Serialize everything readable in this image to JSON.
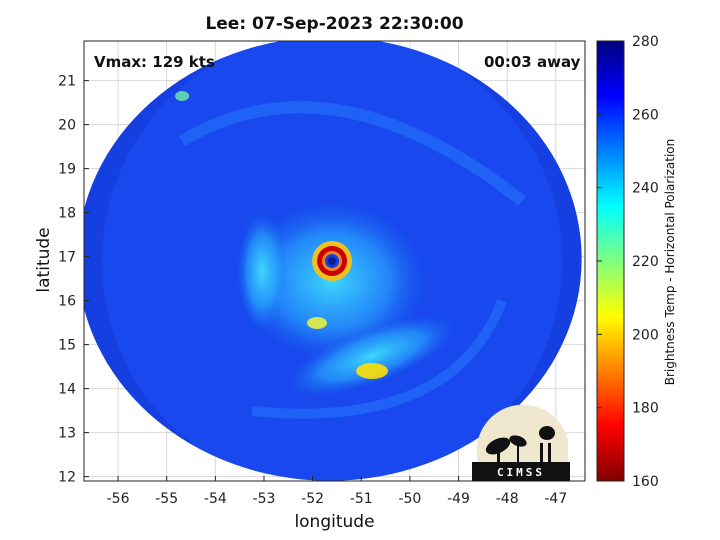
{
  "title": "Lee: 07-Sep-2023 22:30:00",
  "annotations": {
    "vmax": "Vmax: 129 kts",
    "time_away": "00:03 away"
  },
  "logo": {
    "text": "CIMSS"
  },
  "chart_data": {
    "type": "heatmap",
    "title": "Lee: 07-Sep-2023 22:30:00",
    "xlabel": "longitude",
    "ylabel": "latitude",
    "xlim": [
      -56.7,
      -46.4
    ],
    "ylim": [
      11.9,
      21.9
    ],
    "xticks": [
      -56,
      -55,
      -54,
      -53,
      -52,
      -51,
      -50,
      -49,
      -48,
      -47
    ],
    "yticks": [
      12,
      13,
      14,
      15,
      16,
      17,
      18,
      19,
      20,
      21
    ],
    "grid": true,
    "eye_center": {
      "lon": -51.6,
      "lat": 16.9
    },
    "swath_center": {
      "lon": -51.65,
      "lat": 16.95
    },
    "colorbar": {
      "label": "Brightness Temp - Horizontal Polarization",
      "min": 160,
      "max": 280,
      "ticks": [
        160,
        180,
        200,
        220,
        240,
        260,
        280
      ],
      "colormap": "jet"
    }
  },
  "colors": {
    "field": "#1848ee",
    "warm": "#1f3fd8",
    "cold_core": "#a00000"
  }
}
